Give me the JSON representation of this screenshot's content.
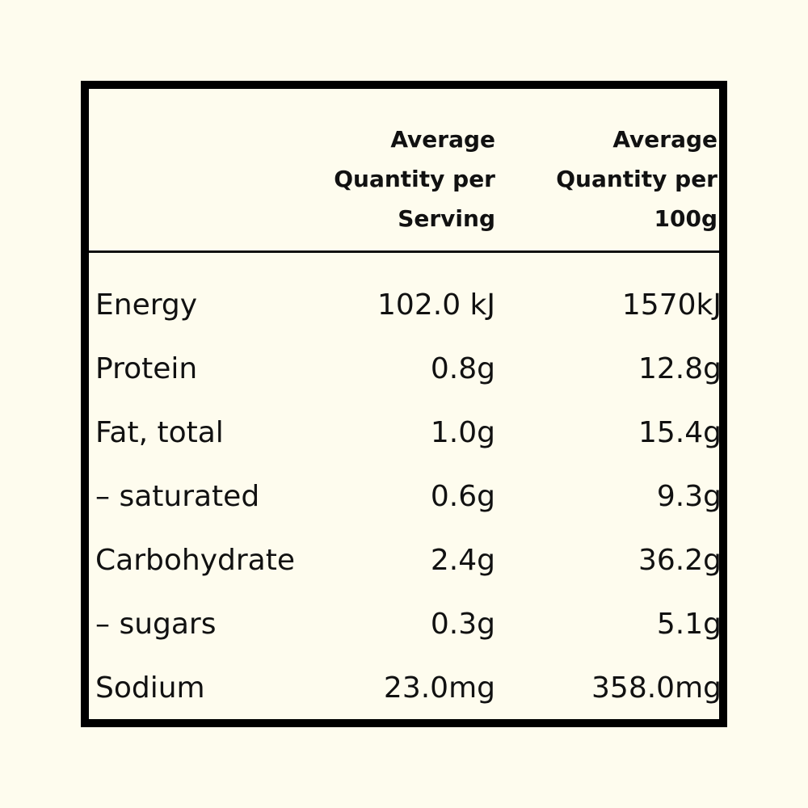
{
  "headers": {
    "serving": "Average Quantity per Serving",
    "per100g": "Average Quantity per 100g"
  },
  "rows": [
    {
      "label": "Energy",
      "serving": "102.0 kJ",
      "per100g": "1570kJ"
    },
    {
      "label": "Protein",
      "serving": "0.8g",
      "per100g": "12.8g"
    },
    {
      "label": "Fat, total",
      "serving": "1.0g",
      "per100g": "15.4g"
    },
    {
      "label": "– saturated",
      "serving": "0.6g",
      "per100g": "9.3g"
    },
    {
      "label": "Carbohydrate",
      "serving": "2.4g",
      "per100g": "36.2g"
    },
    {
      "label": "– sugars",
      "serving": "0.3g",
      "per100g": "5.1g"
    },
    {
      "label": "Sodium",
      "serving": "23.0mg",
      "per100g": "358.0mg"
    }
  ]
}
